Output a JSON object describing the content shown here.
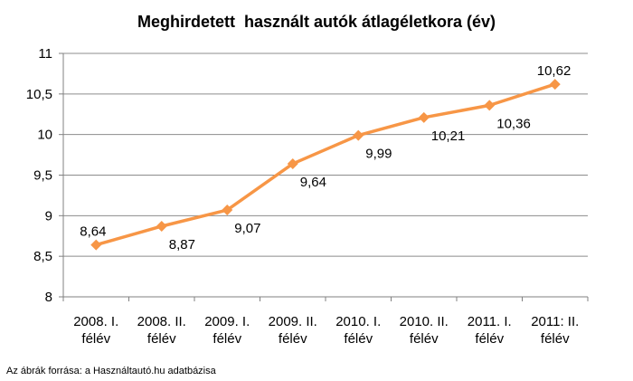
{
  "title": "Meghirdetett  használt autók átlagéletkora (év)",
  "source": "Az ábrák forrása: a Használtautó.hu adatbázisa",
  "colors": {
    "line": "#f79646",
    "grid": "#8c8c8c",
    "axis": "#808080"
  },
  "chart_data": {
    "type": "line",
    "title": "Meghirdetett  használt autók átlagéletkora (év)",
    "xlabel": "",
    "ylabel": "",
    "ylim": [
      8,
      11
    ],
    "ytick_step": 0.5,
    "ytick_labels": [
      "8",
      "8,5",
      "9",
      "9,5",
      "10",
      "10,5",
      "11"
    ],
    "grid": true,
    "legend": "none",
    "categories": [
      [
        "2008. I.",
        "félév"
      ],
      [
        "2008. II.",
        "félév"
      ],
      [
        "2009. I.",
        "félév"
      ],
      [
        "2009. II.",
        "félév"
      ],
      [
        "2010. I.",
        "félév"
      ],
      [
        "2010. II.",
        "félév"
      ],
      [
        "2011. I.",
        "félév"
      ],
      [
        "2011: II.",
        "félév"
      ]
    ],
    "series": [
      {
        "values": [
          8.64,
          8.87,
          9.07,
          9.64,
          9.99,
          10.21,
          10.36,
          10.62
        ],
        "labels": [
          "8,64",
          "8,87",
          "9,07",
          "9,64",
          "9,99",
          "10,21",
          "10,36",
          "10,62"
        ]
      }
    ]
  }
}
